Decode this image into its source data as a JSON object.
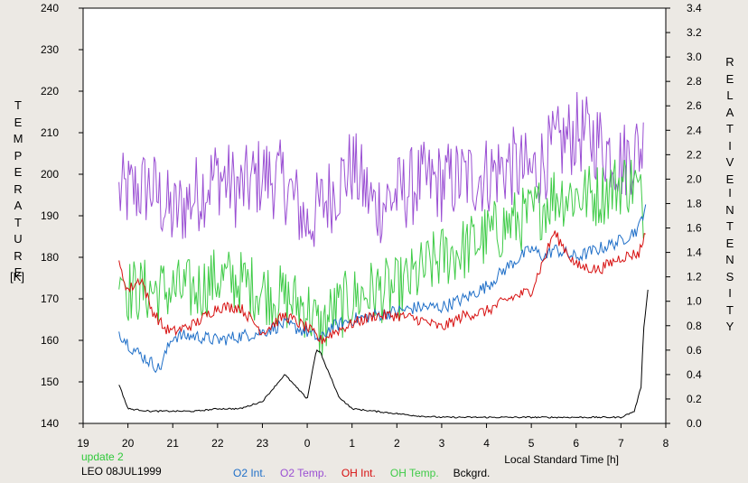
{
  "chart_data": {
    "type": "line",
    "xlabel": "Local Standard Time [h]",
    "ylabel_left_letters": [
      "T",
      "E",
      "M",
      "P",
      "E",
      "R",
      "A",
      "T",
      "U",
      "R",
      "E"
    ],
    "ylabel_left_unit": "[K]",
    "ylabel_right_word1": [
      "R",
      "E",
      "L",
      "A",
      "T",
      "I",
      "V",
      "E"
    ],
    "ylabel_right_word2": [
      "I",
      "N",
      "T",
      "E",
      "N",
      "S",
      "I",
      "T",
      "Y"
    ],
    "x_ticks": [
      19,
      20,
      21,
      22,
      23,
      0,
      1,
      2,
      3,
      4,
      5,
      6,
      7,
      8
    ],
    "xlim": [
      19,
      32
    ],
    "y_left_ticks": [
      140,
      150,
      160,
      170,
      180,
      190,
      200,
      210,
      220,
      230,
      240
    ],
    "ylim_left": [
      140,
      240
    ],
    "y_right_ticks": [
      "0.0",
      "0.2",
      "0.4",
      "0.6",
      "0.8",
      "1.0",
      "1.2",
      "1.4",
      "1.6",
      "1.8",
      "2.0",
      "2.2",
      "2.4",
      "2.6",
      "2.8",
      "3.0",
      "3.2",
      "3.4"
    ],
    "ylim_right": [
      0,
      3.4
    ],
    "status_text": "update 2",
    "station_text": "LEO 08JUL1999",
    "series": [
      {
        "name": "O2 Int.",
        "color": "#1f6fc8",
        "axis": "left",
        "noise": 1.6,
        "x": [
          19.8,
          20.1,
          20.6,
          20.7,
          21.0,
          21.5,
          22.0,
          22.5,
          23.0,
          23.5,
          24.0,
          24.3,
          24.5,
          25.0,
          25.5,
          26.0,
          26.5,
          27.0,
          27.5,
          28.0,
          28.5,
          29.0,
          29.3,
          29.5,
          30.0,
          30.5,
          31.0,
          31.4,
          31.55
        ],
        "y": [
          162,
          158,
          154,
          153,
          161,
          161,
          160,
          161,
          162,
          164,
          162,
          160,
          163,
          165,
          166,
          167,
          168,
          168,
          170,
          173,
          178,
          182,
          180,
          182,
          180,
          182,
          184,
          187,
          193
        ]
      },
      {
        "name": "O2 Temp.",
        "color": "#9a4fd3",
        "axis": "left",
        "noise": 10,
        "x": [
          19.8,
          20.5,
          21.0,
          21.5,
          22.0,
          22.5,
          23.0,
          23.5,
          24.0,
          24.5,
          25.0,
          25.5,
          26.0,
          26.5,
          27.0,
          27.5,
          28.0,
          28.5,
          29.0,
          29.5,
          30.0,
          30.5,
          31.0,
          31.5
        ],
        "y": [
          195,
          197,
          190,
          195,
          200,
          196,
          200,
          198,
          188,
          195,
          202,
          192,
          195,
          198,
          198,
          199,
          200,
          202,
          200,
          206,
          210,
          208,
          203,
          207
        ]
      },
      {
        "name": "OH Int.",
        "color": "#d71010",
        "axis": "left",
        "noise": 1.4,
        "x": [
          19.8,
          20.0,
          20.3,
          20.5,
          20.8,
          21.0,
          21.5,
          22.0,
          22.5,
          23.0,
          23.5,
          24.0,
          24.3,
          24.6,
          25.0,
          25.5,
          26.0,
          26.5,
          27.0,
          27.5,
          28.0,
          28.5,
          29.0,
          29.3,
          29.5,
          30.0,
          30.5,
          31.0,
          31.4,
          31.55
        ],
        "y": [
          178,
          172,
          175,
          168,
          163,
          162,
          164,
          168,
          168,
          162,
          166,
          163,
          160,
          162,
          164,
          166,
          166,
          165,
          163,
          166,
          167,
          170,
          172,
          180,
          186,
          178,
          177,
          180,
          181,
          186
        ]
      },
      {
        "name": "OH Temp.",
        "color": "#3fcb47",
        "axis": "left",
        "noise": 8,
        "x": [
          19.8,
          20.0,
          20.5,
          21.0,
          21.5,
          22.0,
          22.5,
          23.0,
          23.5,
          24.0,
          24.3,
          24.5,
          25.0,
          25.5,
          26.0,
          26.5,
          27.0,
          27.5,
          28.0,
          28.5,
          29.0,
          29.5,
          30.0,
          30.5,
          31.0,
          31.3,
          31.5
        ],
        "y": [
          180,
          172,
          172,
          172,
          172,
          175,
          174,
          172,
          170,
          168,
          162,
          166,
          170,
          172,
          172,
          176,
          180,
          182,
          185,
          188,
          190,
          195,
          195,
          195,
          198,
          198,
          192
        ]
      },
      {
        "name": "Bckgrd.",
        "color": "#000000",
        "axis": "right",
        "noise": 0.012,
        "x": [
          19.8,
          20.0,
          20.5,
          21.0,
          21.5,
          22.0,
          22.5,
          23.0,
          23.5,
          23.7,
          24.0,
          24.2,
          24.3,
          24.4,
          24.5,
          24.7,
          25.0,
          25.5,
          26.0,
          26.5,
          27.0,
          27.5,
          28.0,
          28.5,
          29.0,
          29.5,
          30.0,
          30.5,
          31.0,
          31.3,
          31.45,
          31.5,
          31.6
        ],
        "y": [
          0.32,
          0.12,
          0.1,
          0.1,
          0.1,
          0.12,
          0.12,
          0.18,
          0.4,
          0.32,
          0.2,
          0.6,
          0.58,
          0.48,
          0.4,
          0.22,
          0.12,
          0.1,
          0.08,
          0.06,
          0.05,
          0.05,
          0.05,
          0.05,
          0.05,
          0.05,
          0.05,
          0.05,
          0.05,
          0.1,
          0.3,
          0.75,
          1.1
        ]
      }
    ]
  }
}
